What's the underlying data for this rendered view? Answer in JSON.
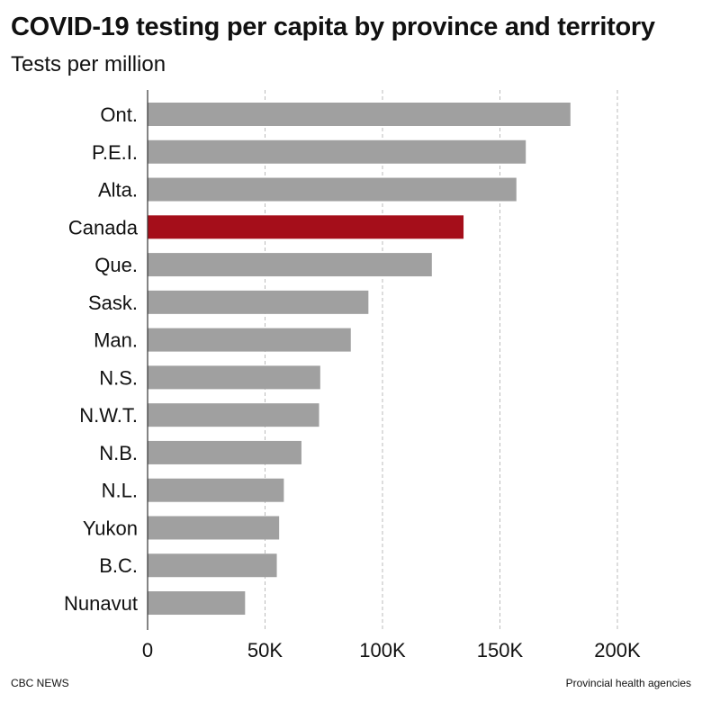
{
  "header": {
    "title": "COVID-19 testing per capita by province and territory",
    "subtitle": "Tests per million"
  },
  "footer": {
    "credit": "CBC NEWS",
    "source": "Provincial health agencies"
  },
  "colors": {
    "bar": "#a0a0a0",
    "highlight": "#a50e1a",
    "grid": "#bbbbbb",
    "axis": "#333333"
  },
  "chart_data": {
    "type": "bar",
    "orientation": "horizontal",
    "title": "COVID-19 testing per capita by province and territory",
    "subtitle": "Tests per million",
    "categories": [
      "Ont.",
      "P.E.I.",
      "Alta.",
      "Canada",
      "Que.",
      "Sask.",
      "Man.",
      "N.S.",
      "N.W.T.",
      "N.B.",
      "N.L.",
      "Yukon",
      "B.C.",
      "Nunavut"
    ],
    "values": [
      180000,
      161000,
      157000,
      134500,
      121000,
      94000,
      86500,
      73500,
      73000,
      65500,
      58000,
      56000,
      55000,
      41500
    ],
    "highlight": "Canada",
    "xlim": [
      0,
      200000
    ],
    "xticks": [
      0,
      50000,
      100000,
      150000,
      200000
    ],
    "xtick_labels": [
      "0",
      "50K",
      "100K",
      "150K",
      "200K"
    ],
    "grid": true,
    "grid_style": "dashed vertical",
    "legend": "none"
  }
}
